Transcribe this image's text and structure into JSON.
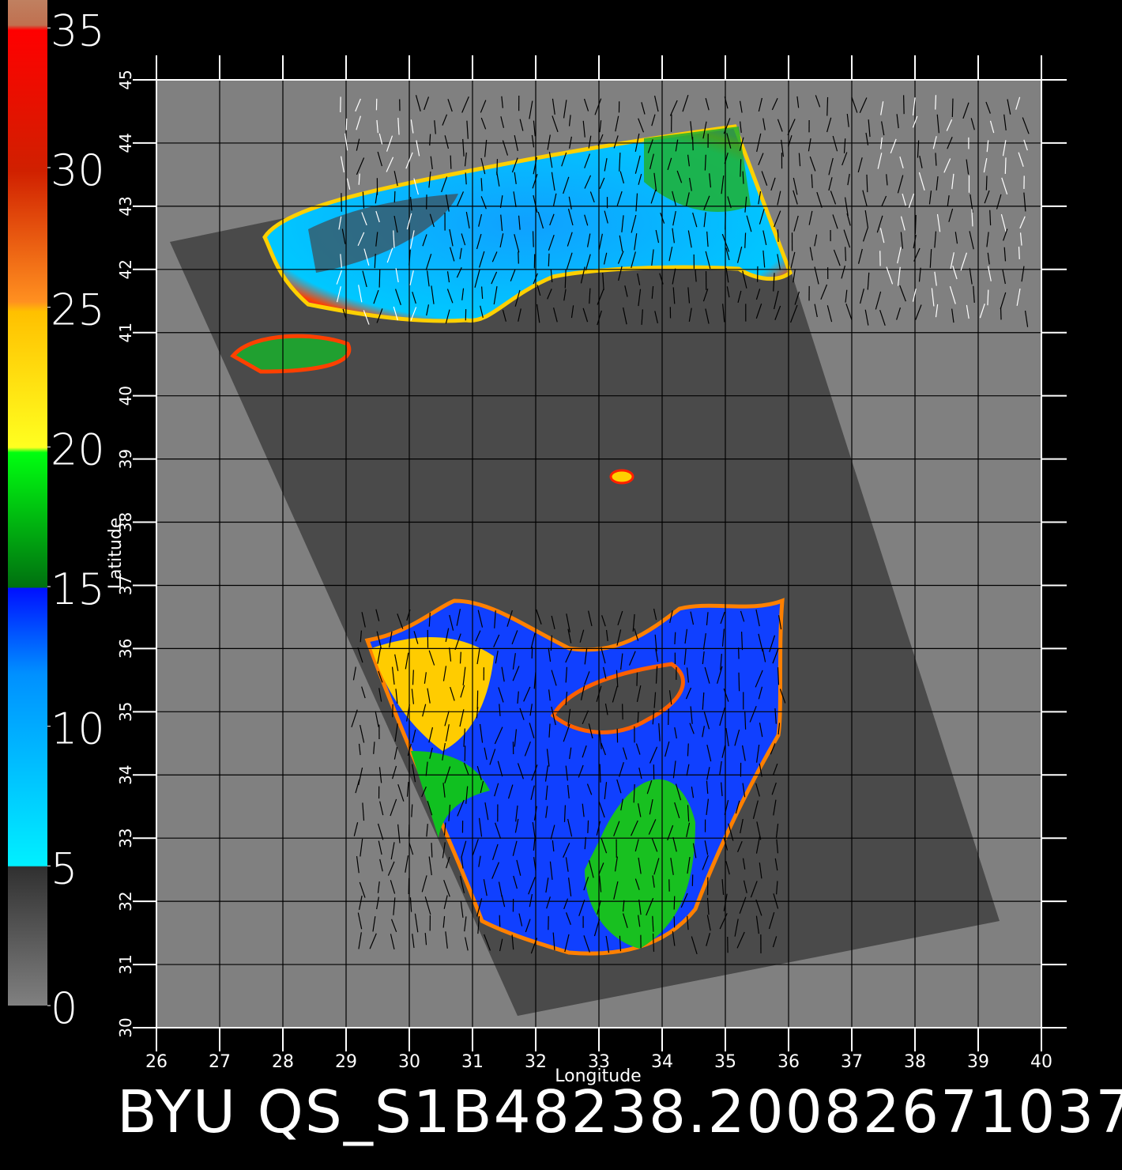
{
  "title": "BYU QS_S1B48238.20082671037",
  "colorbar": {
    "clim": [
      0,
      36
    ],
    "ticks": [
      0,
      5,
      10,
      15,
      20,
      25,
      30,
      35
    ]
  },
  "map": {
    "x_label": "Longitude",
    "y_label": "Latitude",
    "xlim": [
      26,
      40
    ],
    "ylim": [
      30,
      45
    ],
    "xticks": [
      26,
      27,
      28,
      29,
      30,
      31,
      32,
      33,
      34,
      35,
      36,
      37,
      38,
      39,
      40
    ],
    "yticks": [
      30,
      31,
      32,
      33,
      34,
      35,
      36,
      37,
      38,
      39,
      40,
      41,
      42,
      43,
      44,
      45
    ],
    "grid": true
  }
}
